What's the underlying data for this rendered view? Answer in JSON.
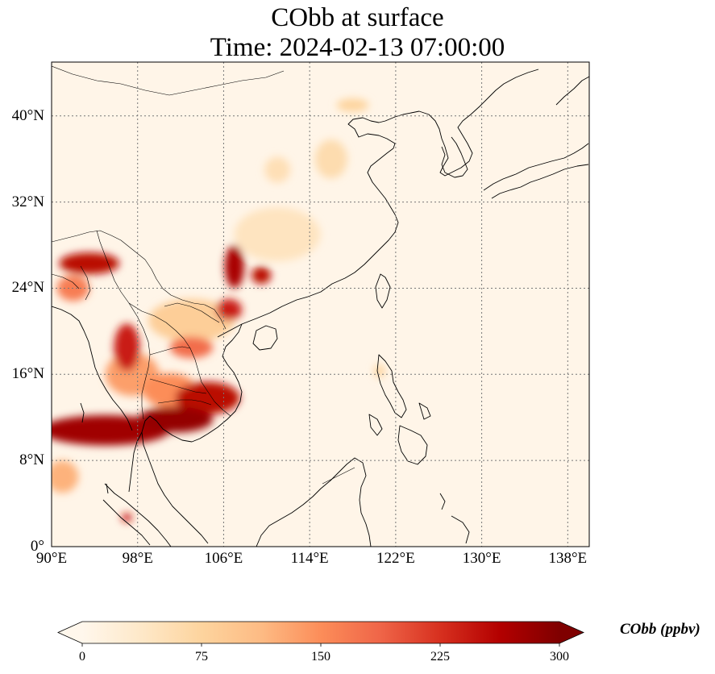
{
  "title": {
    "line1": "CObb at surface",
    "line2": "Time: 2024-02-13 07:00:00"
  },
  "map": {
    "projection": "PlateCarree",
    "extent_lon": [
      90,
      140
    ],
    "extent_lat": [
      0,
      45
    ],
    "gridlines": "dotted",
    "coastlines": true,
    "borders": true,
    "lon_ticks": [
      {
        "value": 90,
        "label": "90°E"
      },
      {
        "value": 98,
        "label": "98°E"
      },
      {
        "value": 106,
        "label": "106°E"
      },
      {
        "value": 114,
        "label": "114°E"
      },
      {
        "value": 122,
        "label": "122°E"
      },
      {
        "value": 130,
        "label": "130°E"
      },
      {
        "value": 138,
        "label": "138°E"
      }
    ],
    "lat_ticks": [
      {
        "value": 0,
        "label": "0°"
      },
      {
        "value": 8,
        "label": "8°N"
      },
      {
        "value": 16,
        "label": "16°N"
      },
      {
        "value": 24,
        "label": "24°N"
      },
      {
        "value": 32,
        "label": "32°N"
      },
      {
        "value": 40,
        "label": "40°N"
      }
    ],
    "hotspots": [
      {
        "lon": 93.5,
        "lat": 26.3,
        "rx": 2.8,
        "ry": 1.0,
        "level": 0.85
      },
      {
        "lon": 92.0,
        "lat": 24.0,
        "rx": 1.5,
        "ry": 1.2,
        "level": 0.55
      },
      {
        "lon": 97.0,
        "lat": 18.5,
        "rx": 1.2,
        "ry": 2.2,
        "level": 0.8
      },
      {
        "lon": 103.0,
        "lat": 18.5,
        "rx": 2.0,
        "ry": 1.0,
        "level": 0.6
      },
      {
        "lon": 107.0,
        "lat": 26.0,
        "rx": 0.9,
        "ry": 2.0,
        "level": 0.9
      },
      {
        "lon": 109.5,
        "lat": 25.2,
        "rx": 0.9,
        "ry": 0.8,
        "level": 0.85
      },
      {
        "lon": 106.5,
        "lat": 22.0,
        "rx": 1.2,
        "ry": 1.0,
        "level": 0.8
      },
      {
        "lon": 104.5,
        "lat": 13.8,
        "rx": 3.0,
        "ry": 1.5,
        "level": 0.85
      },
      {
        "lon": 101.5,
        "lat": 11.8,
        "rx": 3.5,
        "ry": 1.2,
        "level": 0.95
      },
      {
        "lon": 95.0,
        "lat": 10.8,
        "rx": 6.0,
        "ry": 1.4,
        "level": 0.92
      },
      {
        "lon": 97.5,
        "lat": 16.0,
        "rx": 2.5,
        "ry": 2.0,
        "level": 0.45
      },
      {
        "lon": 101.0,
        "lat": 14.5,
        "rx": 2.5,
        "ry": 1.6,
        "level": 0.5
      },
      {
        "lon": 97.0,
        "lat": 2.7,
        "rx": 0.5,
        "ry": 0.4,
        "level": 0.8
      },
      {
        "lon": 116.0,
        "lat": 36.0,
        "rx": 1.5,
        "ry": 1.8,
        "level": 0.2
      },
      {
        "lon": 111.0,
        "lat": 35.0,
        "rx": 1.2,
        "ry": 1.2,
        "level": 0.18
      },
      {
        "lon": 118.0,
        "lat": 41.0,
        "rx": 1.5,
        "ry": 0.6,
        "level": 0.25
      },
      {
        "lon": 120.5,
        "lat": 16.3,
        "rx": 0.5,
        "ry": 0.6,
        "level": 0.25
      },
      {
        "lon": 103.0,
        "lat": 21.0,
        "rx": 4.0,
        "ry": 2.0,
        "level": 0.28
      },
      {
        "lon": 111.0,
        "lat": 29.0,
        "rx": 4.0,
        "ry": 2.5,
        "level": 0.15
      },
      {
        "lon": 91.0,
        "lat": 6.5,
        "rx": 1.5,
        "ry": 1.5,
        "level": 0.4
      }
    ]
  },
  "colorbar": {
    "label": "CObb (ppbv)",
    "min": 0,
    "max": 300,
    "extend": "both",
    "colormap": "OrRd",
    "colors": [
      "#fff7ec",
      "#fee8c8",
      "#fdd49e",
      "#fdbb84",
      "#fc8d59",
      "#ef6548",
      "#d7301f",
      "#b30000",
      "#7f0000"
    ],
    "ticks": [
      {
        "value": 0,
        "label": "0"
      },
      {
        "value": 75,
        "label": "75"
      },
      {
        "value": 150,
        "label": "150"
      },
      {
        "value": 225,
        "label": "225"
      },
      {
        "value": 300,
        "label": "300"
      }
    ]
  }
}
